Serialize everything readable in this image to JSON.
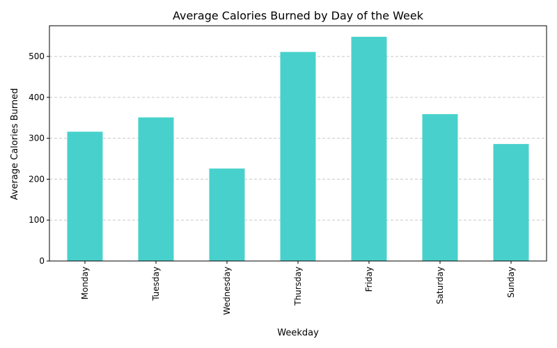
{
  "chart_data": {
    "type": "bar",
    "title": "Average Calories Burned by Day of the Week",
    "xlabel": "Weekday",
    "ylabel": "Average Calories Burned",
    "categories": [
      "Monday",
      "Tuesday",
      "Wednesday",
      "Thursday",
      "Friday",
      "Saturday",
      "Sunday"
    ],
    "values": [
      316,
      351,
      226,
      511,
      548,
      359,
      286
    ],
    "ylim": [
      0,
      575
    ],
    "yticks": [
      0,
      100,
      200,
      300,
      400,
      500
    ],
    "grid": "y-dashed",
    "bar_color": "#48D1CC"
  }
}
